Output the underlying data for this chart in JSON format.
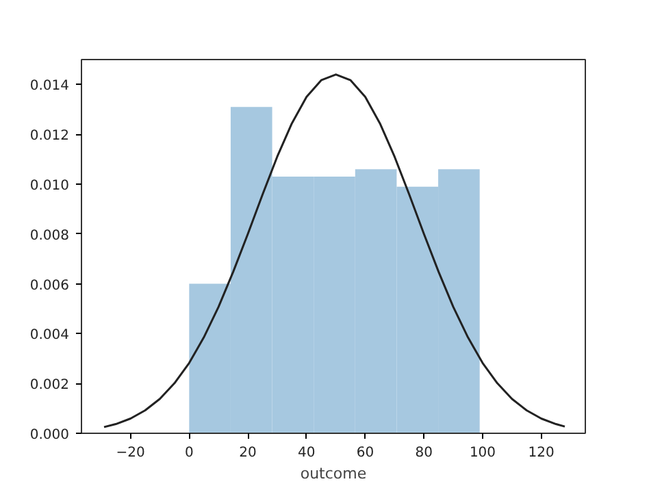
{
  "chart_data": {
    "type": "histogram",
    "xlabel": "outcome",
    "bins": [
      0,
      14.14,
      28.29,
      42.43,
      56.57,
      70.71,
      84.86,
      99
    ],
    "values": [
      0.006,
      0.0131,
      0.0103,
      0.0103,
      0.0106,
      0.0099,
      0.0106
    ],
    "color": "#a6c8e0",
    "series": [
      {
        "type": "line",
        "color": "#222222",
        "x": [
          -29,
          -25,
          -20,
          -15,
          -10,
          -5,
          0,
          5,
          10,
          15,
          20,
          25,
          30,
          35,
          40,
          45,
          50,
          55,
          60,
          65,
          70,
          75,
          80,
          85,
          90,
          95,
          100,
          105,
          110,
          115,
          120,
          125,
          128
        ],
        "values": [
          0.00025,
          0.00037,
          0.00059,
          0.00092,
          0.00138,
          0.00201,
          0.00282,
          0.00385,
          0.00507,
          0.00648,
          0.008,
          0.00958,
          0.0111,
          0.01244,
          0.0135,
          0.01417,
          0.0144,
          0.01417,
          0.0135,
          0.01244,
          0.0111,
          0.00958,
          0.008,
          0.00648,
          0.00507,
          0.00385,
          0.00282,
          0.00201,
          0.00138,
          0.00092,
          0.00059,
          0.00037,
          0.00027
        ]
      }
    ],
    "xlim": [
      -36.7,
      135
    ],
    "ylim": [
      0,
      0.015
    ],
    "xticks": [
      -20,
      0,
      20,
      40,
      60,
      80,
      100,
      120
    ],
    "yticks": [
      {
        "value": 0,
        "label": "0.000"
      },
      {
        "value": 0.002,
        "label": "0.002"
      },
      {
        "value": 0.004,
        "label": "0.004"
      },
      {
        "value": 0.006,
        "label": "0.006"
      },
      {
        "value": 0.008,
        "label": "0.008"
      },
      {
        "value": 0.01,
        "label": "0.010"
      },
      {
        "value": 0.012,
        "label": "0.012"
      },
      {
        "value": 0.014,
        "label": "0.014"
      }
    ],
    "grid": false
  }
}
